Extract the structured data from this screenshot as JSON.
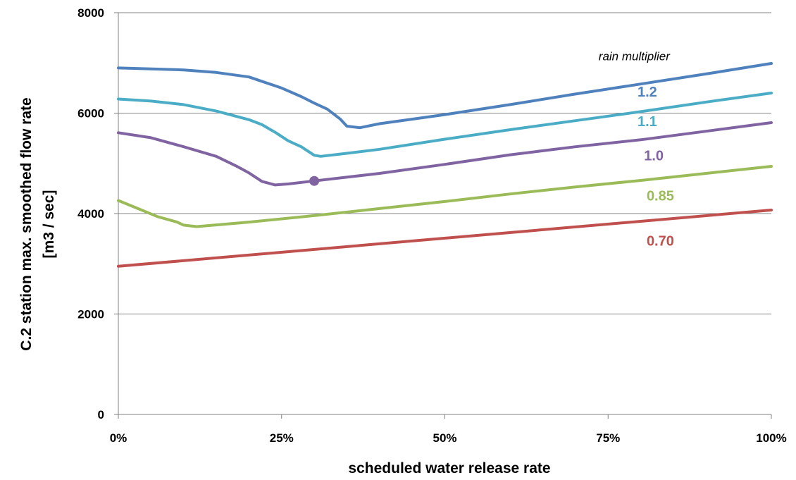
{
  "chart_data": {
    "type": "line",
    "title": "",
    "xlabel": "scheduled water release rate",
    "ylabel": "C.2 station max. smoothed flow rate",
    "ylabel_unit": "[m3 / sec]",
    "xlim": [
      0,
      100
    ],
    "ylim": [
      0,
      8000
    ],
    "x_ticks": [
      0,
      25,
      50,
      75,
      100
    ],
    "x_tick_labels": [
      "0%",
      "25%",
      "50%",
      "75%",
      "100%"
    ],
    "y_ticks": [
      0,
      2000,
      4000,
      6000,
      8000
    ],
    "y_tick_labels": [
      "0",
      "2000",
      "4000",
      "6000",
      "8000"
    ],
    "grid": "horizontal",
    "legend_title": "rain multiplier",
    "series": [
      {
        "name": "1.2",
        "color": "#4F81BD",
        "x": [
          0,
          5,
          10,
          15,
          20,
          25,
          28,
          30,
          32,
          34,
          35,
          37,
          40,
          50,
          60,
          70,
          80,
          90,
          100
        ],
        "values": [
          6900,
          6880,
          6860,
          6810,
          6720,
          6500,
          6330,
          6200,
          6080,
          5880,
          5740,
          5710,
          5790,
          5970,
          6170,
          6380,
          6580,
          6780,
          6990
        ]
      },
      {
        "name": "1.1",
        "color": "#4BACC6",
        "x": [
          0,
          5,
          10,
          15,
          20,
          22,
          24,
          26,
          28,
          30,
          31,
          35,
          40,
          50,
          60,
          70,
          80,
          90,
          100
        ],
        "values": [
          6280,
          6240,
          6170,
          6040,
          5870,
          5770,
          5620,
          5450,
          5330,
          5160,
          5140,
          5200,
          5280,
          5480,
          5670,
          5850,
          6030,
          6220,
          6400
        ]
      },
      {
        "name": "1.0",
        "color": "#8064A2",
        "x": [
          0,
          5,
          10,
          15,
          18,
          20,
          22,
          24,
          26,
          30,
          40,
          50,
          60,
          70,
          80,
          90,
          100
        ],
        "values": [
          5610,
          5510,
          5330,
          5140,
          4950,
          4810,
          4640,
          4570,
          4590,
          4650,
          4800,
          4980,
          5170,
          5330,
          5470,
          5640,
          5810
        ]
      },
      {
        "name": "0.85",
        "color": "#9BBB59",
        "x": [
          0,
          3,
          6,
          9,
          10,
          12,
          20,
          30,
          40,
          50,
          60,
          70,
          80,
          90,
          100
        ],
        "values": [
          4260,
          4100,
          3940,
          3830,
          3770,
          3740,
          3830,
          3960,
          4100,
          4240,
          4390,
          4530,
          4660,
          4800,
          4940
        ]
      },
      {
        "name": "0.70",
        "color": "#C0504D",
        "x": [
          0,
          100
        ],
        "values": [
          2950,
          4070
        ]
      }
    ],
    "highlight_point": {
      "series": "1.0",
      "x": 30,
      "y": 4650,
      "color": "#8064A2"
    },
    "series_labels": [
      {
        "text": "1.2",
        "x": 81,
        "y": 6330,
        "color": "#4F81BD"
      },
      {
        "text": "1.1",
        "x": 81,
        "y": 5740,
        "color": "#4BACC6"
      },
      {
        "text": "1.0",
        "x": 82,
        "y": 5060,
        "color": "#8064A2"
      },
      {
        "text": "0.85",
        "x": 83,
        "y": 4260,
        "color": "#9BBB59"
      },
      {
        "text": "0.70",
        "x": 83,
        "y": 3360,
        "color": "#C0504D"
      }
    ],
    "annotation": {
      "text": "rain multiplier",
      "x": 79,
      "y": 7050
    }
  }
}
